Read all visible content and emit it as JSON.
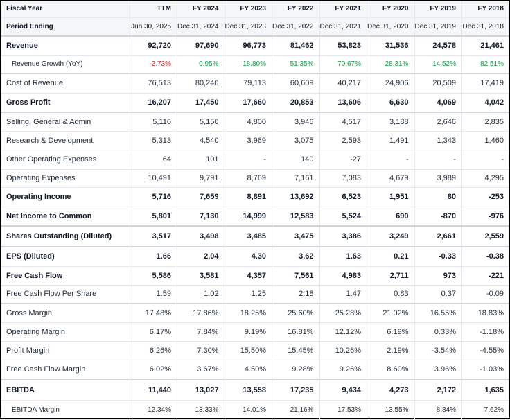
{
  "columns": [
    "TTM",
    "FY 2024",
    "FY 2023",
    "FY 2022",
    "FY 2021",
    "FY 2020",
    "FY 2019",
    "FY 2018"
  ],
  "header_label": "Fiscal Year",
  "period_label": "Period Ending",
  "periods": [
    "Jun 30, 2025",
    "Dec 31, 2024",
    "Dec 31, 2023",
    "Dec 31, 2022",
    "Dec 31, 2021",
    "Dec 31, 2020",
    "Dec 31, 2019",
    "Dec 31, 2018"
  ],
  "rows": [
    {
      "label": "Revenue",
      "values": [
        "92,720",
        "97,690",
        "96,773",
        "81,462",
        "53,823",
        "31,536",
        "24,578",
        "21,461"
      ]
    },
    {
      "label": "Revenue Growth (YoY)",
      "values": [
        "-2.73%",
        "0.95%",
        "18.80%",
        "51.35%",
        "70.67%",
        "28.31%",
        "14.52%",
        "82.51%"
      ]
    },
    {
      "label": "Cost of Revenue",
      "values": [
        "76,513",
        "80,240",
        "79,113",
        "60,609",
        "40,217",
        "24,906",
        "20,509",
        "17,419"
      ]
    },
    {
      "label": "Gross Profit",
      "values": [
        "16,207",
        "17,450",
        "17,660",
        "20,853",
        "13,606",
        "6,630",
        "4,069",
        "4,042"
      ]
    },
    {
      "label": "Selling, General & Admin",
      "values": [
        "5,116",
        "5,150",
        "4,800",
        "3,946",
        "4,517",
        "3,188",
        "2,646",
        "2,835"
      ]
    },
    {
      "label": "Research & Development",
      "values": [
        "5,313",
        "4,540",
        "3,969",
        "3,075",
        "2,593",
        "1,491",
        "1,343",
        "1,460"
      ]
    },
    {
      "label": "Other Operating Expenses",
      "values": [
        "64",
        "101",
        "-",
        "140",
        "-27",
        "-",
        "-",
        "-"
      ]
    },
    {
      "label": "Operating Expenses",
      "values": [
        "10,491",
        "9,791",
        "8,769",
        "7,161",
        "7,083",
        "4,679",
        "3,989",
        "4,295"
      ]
    },
    {
      "label": "Operating Income",
      "values": [
        "5,716",
        "7,659",
        "8,891",
        "13,692",
        "6,523",
        "1,951",
        "80",
        "-253"
      ]
    },
    {
      "label": "Net Income to Common",
      "values": [
        "5,801",
        "7,130",
        "14,999",
        "12,583",
        "5,524",
        "690",
        "-870",
        "-976"
      ]
    },
    {
      "label": "Shares Outstanding (Diluted)",
      "values": [
        "3,517",
        "3,498",
        "3,485",
        "3,475",
        "3,386",
        "3,249",
        "2,661",
        "2,559"
      ]
    },
    {
      "label": "EPS (Diluted)",
      "values": [
        "1.66",
        "2.04",
        "4.30",
        "3.62",
        "1.63",
        "0.21",
        "-0.33",
        "-0.38"
      ]
    },
    {
      "label": "Free Cash Flow",
      "values": [
        "5,586",
        "3,581",
        "4,357",
        "7,561",
        "4,983",
        "2,711",
        "973",
        "-221"
      ]
    },
    {
      "label": "Free Cash Flow Per Share",
      "values": [
        "1.59",
        "1.02",
        "1.25",
        "2.18",
        "1.47",
        "0.83",
        "0.37",
        "-0.09"
      ]
    },
    {
      "label": "Gross Margin",
      "values": [
        "17.48%",
        "17.86%",
        "18.25%",
        "25.60%",
        "25.28%",
        "21.02%",
        "16.55%",
        "18.83%"
      ]
    },
    {
      "label": "Operating Margin",
      "values": [
        "6.17%",
        "7.84%",
        "9.19%",
        "16.81%",
        "12.12%",
        "6.19%",
        "0.33%",
        "-1.18%"
      ]
    },
    {
      "label": "Profit Margin",
      "values": [
        "6.26%",
        "7.30%",
        "15.50%",
        "15.45%",
        "10.26%",
        "2.19%",
        "-3.54%",
        "-4.55%"
      ]
    },
    {
      "label": "Free Cash Flow Margin",
      "values": [
        "6.02%",
        "3.67%",
        "4.50%",
        "9.28%",
        "9.26%",
        "8.60%",
        "3.96%",
        "-1.03%"
      ]
    },
    {
      "label": "EBITDA",
      "values": [
        "11,440",
        "13,027",
        "13,558",
        "17,235",
        "9,434",
        "4,273",
        "2,172",
        "1,635"
      ]
    },
    {
      "label": "EBITDA Margin",
      "values": [
        "12.34%",
        "13.33%",
        "14.01%",
        "21.16%",
        "17.53%",
        "13.55%",
        "8.84%",
        "7.62%"
      ]
    }
  ],
  "colors": {
    "negative": "#dc2626",
    "positive": "#16a34a",
    "header_bg": "#f5f6f7",
    "border": "#e5e7eb"
  }
}
